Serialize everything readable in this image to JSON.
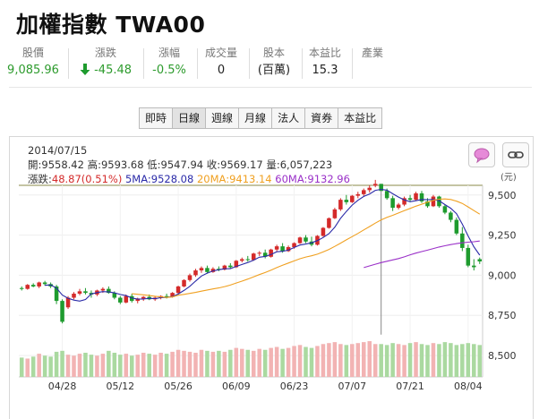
{
  "title": "加權指數 TWA00",
  "quote": [
    {
      "label": "股價",
      "value": "9,085.96",
      "color": "green"
    },
    {
      "label": "漲跌",
      "value": "-45.48",
      "color": "green",
      "arrow": "down-arrow-icon"
    },
    {
      "label": "漲幅",
      "value": "-0.5%",
      "color": "green"
    },
    {
      "label": "成交量",
      "value": "0"
    },
    {
      "label": "股本",
      "value": "(百萬)"
    },
    {
      "label": "本益比",
      "value": "15.3"
    },
    {
      "label": "產業",
      "value": ""
    }
  ],
  "tabs": [
    "即時",
    "日線",
    "週線",
    "月線",
    "法人",
    "資券",
    "本益比"
  ],
  "active_tab": "日線",
  "chart_header": {
    "date": "2014/07/15",
    "ohlc": "開:9558.42 高:9593.68 低:9547.94 收:9569.17 量:6,057,223",
    "change_label": "漲跌:",
    "change_value": "48.87(0.51%)",
    "ma5": "5MA:9528.08",
    "ma20": "20MA:9413.14",
    "ma60": "60MA:9132.96"
  },
  "colors": {
    "up": "#d42a2a",
    "down": "#1e9b2e",
    "ma5": "#2a2aa8",
    "ma20": "#f0a020",
    "ma60": "#9a30c8",
    "vol": "#f2b3b3",
    "vol_down": "#aad9a0"
  },
  "icons": {
    "comment": "speech-bubble-icon",
    "link": "chain-link-icon"
  },
  "chart_data": {
    "type": "candlestick",
    "y_unit": "(元)",
    "ylim": [
      8400,
      9560
    ],
    "y_ticks": [
      "9,500",
      "9,250",
      "9,000",
      "8,750",
      "8,500"
    ],
    "y_tick_values": [
      9500,
      9250,
      9000,
      8750,
      8500
    ],
    "x_ticks": [
      "04/28",
      "05/12",
      "05/26",
      "06/09",
      "06/23",
      "07/07",
      "07/21",
      "08/04"
    ],
    "x_tick_index": [
      7,
      17,
      27,
      37,
      47,
      57,
      67,
      77
    ],
    "candles": [
      [
        8920,
        8930,
        8905,
        8915
      ],
      [
        8915,
        8945,
        8910,
        8940
      ],
      [
        8940,
        8950,
        8925,
        8930
      ],
      [
        8930,
        8960,
        8920,
        8955
      ],
      [
        8955,
        8965,
        8935,
        8945
      ],
      [
        8945,
        8955,
        8920,
        8930
      ],
      [
        8930,
        8940,
        8820,
        8840
      ],
      [
        8840,
        8850,
        8700,
        8710
      ],
      [
        8800,
        8870,
        8790,
        8860
      ],
      [
        8860,
        8895,
        8850,
        8885
      ],
      [
        8885,
        8915,
        8875,
        8900
      ],
      [
        8900,
        8920,
        8880,
        8890
      ],
      [
        8890,
        8905,
        8860,
        8880
      ],
      [
        8880,
        8910,
        8870,
        8905
      ],
      [
        8905,
        8925,
        8890,
        8915
      ],
      [
        8915,
        8930,
        8885,
        8890
      ],
      [
        8890,
        8900,
        8850,
        8860
      ],
      [
        8860,
        8870,
        8820,
        8830
      ],
      [
        8830,
        8880,
        8825,
        8870
      ],
      [
        8870,
        8885,
        8830,
        8840
      ],
      [
        8840,
        8860,
        8825,
        8855
      ],
      [
        8855,
        8870,
        8840,
        8865
      ],
      [
        8865,
        8880,
        8845,
        8850
      ],
      [
        8850,
        8870,
        8840,
        8860
      ],
      [
        8860,
        8875,
        8850,
        8870
      ],
      [
        8870,
        8885,
        8855,
        8865
      ],
      [
        8865,
        8895,
        8860,
        8890
      ],
      [
        8890,
        8935,
        8880,
        8930
      ],
      [
        8930,
        8975,
        8925,
        8970
      ],
      [
        8970,
        9010,
        8960,
        9000
      ],
      [
        9000,
        9040,
        8990,
        9030
      ],
      [
        9030,
        9055,
        9015,
        9045
      ],
      [
        9045,
        9060,
        9010,
        9020
      ],
      [
        9020,
        9050,
        9015,
        9040
      ],
      [
        9040,
        9055,
        9025,
        9035
      ],
      [
        9035,
        9065,
        9030,
        9060
      ],
      [
        9060,
        9075,
        9040,
        9050
      ],
      [
        9050,
        9095,
        9045,
        9090
      ],
      [
        9090,
        9110,
        9080,
        9100
      ],
      [
        9100,
        9120,
        9085,
        9095
      ],
      [
        9095,
        9140,
        9090,
        9135
      ],
      [
        9135,
        9150,
        9120,
        9140
      ],
      [
        9140,
        9160,
        9105,
        9115
      ],
      [
        9115,
        9165,
        9110,
        9160
      ],
      [
        9160,
        9190,
        9150,
        9180
      ],
      [
        9180,
        9200,
        9140,
        9150
      ],
      [
        9150,
        9185,
        9145,
        9175
      ],
      [
        9175,
        9205,
        9165,
        9200
      ],
      [
        9200,
        9240,
        9195,
        9235
      ],
      [
        9235,
        9250,
        9200,
        9210
      ],
      [
        9210,
        9240,
        9180,
        9190
      ],
      [
        9190,
        9250,
        9185,
        9245
      ],
      [
        9245,
        9300,
        9240,
        9295
      ],
      [
        9295,
        9360,
        9290,
        9355
      ],
      [
        9355,
        9420,
        9350,
        9410
      ],
      [
        9410,
        9480,
        9400,
        9470
      ],
      [
        9470,
        9500,
        9440,
        9455
      ],
      [
        9455,
        9500,
        9450,
        9495
      ],
      [
        9495,
        9520,
        9480,
        9505
      ],
      [
        9505,
        9540,
        9490,
        9530
      ],
      [
        9530,
        9560,
        9515,
        9545
      ],
      [
        9558,
        9594,
        9548,
        9569
      ],
      [
        9569,
        9570,
        8630,
        9525
      ],
      [
        9525,
        9540,
        9470,
        9480
      ],
      [
        9480,
        9495,
        9400,
        9420
      ],
      [
        9420,
        9450,
        9410,
        9440
      ],
      [
        9440,
        9490,
        9430,
        9480
      ],
      [
        9480,
        9500,
        9460,
        9470
      ],
      [
        9470,
        9520,
        9465,
        9510
      ],
      [
        9510,
        9525,
        9450,
        9460
      ],
      [
        9460,
        9480,
        9420,
        9430
      ],
      [
        9430,
        9500,
        9425,
        9490
      ],
      [
        9490,
        9495,
        9420,
        9430
      ],
      [
        9430,
        9440,
        9380,
        9390
      ],
      [
        9390,
        9400,
        9330,
        9345
      ],
      [
        9345,
        9360,
        9250,
        9260
      ],
      [
        9260,
        9300,
        9150,
        9170
      ],
      [
        9170,
        9190,
        9050,
        9060
      ],
      [
        9060,
        9100,
        9030,
        9050
      ],
      [
        9100,
        9110,
        9070,
        9086
      ]
    ],
    "volumes": [
      0.2,
      0.19,
      0.21,
      0.24,
      0.22,
      0.21,
      0.26,
      0.27,
      0.23,
      0.22,
      0.24,
      0.25,
      0.23,
      0.22,
      0.24,
      0.27,
      0.25,
      0.23,
      0.24,
      0.22,
      0.23,
      0.25,
      0.24,
      0.23,
      0.25,
      0.24,
      0.26,
      0.28,
      0.27,
      0.26,
      0.25,
      0.28,
      0.27,
      0.26,
      0.27,
      0.26,
      0.28,
      0.3,
      0.29,
      0.28,
      0.27,
      0.29,
      0.28,
      0.3,
      0.31,
      0.29,
      0.3,
      0.32,
      0.33,
      0.31,
      0.3,
      0.32,
      0.34,
      0.35,
      0.36,
      0.34,
      0.33,
      0.34,
      0.35,
      0.36,
      0.37,
      0.34,
      0.34,
      0.33,
      0.35,
      0.34,
      0.33,
      0.35,
      0.36,
      0.34,
      0.33,
      0.35,
      0.34,
      0.36,
      0.35,
      0.33,
      0.34,
      0.35,
      0.34,
      0.33
    ]
  }
}
